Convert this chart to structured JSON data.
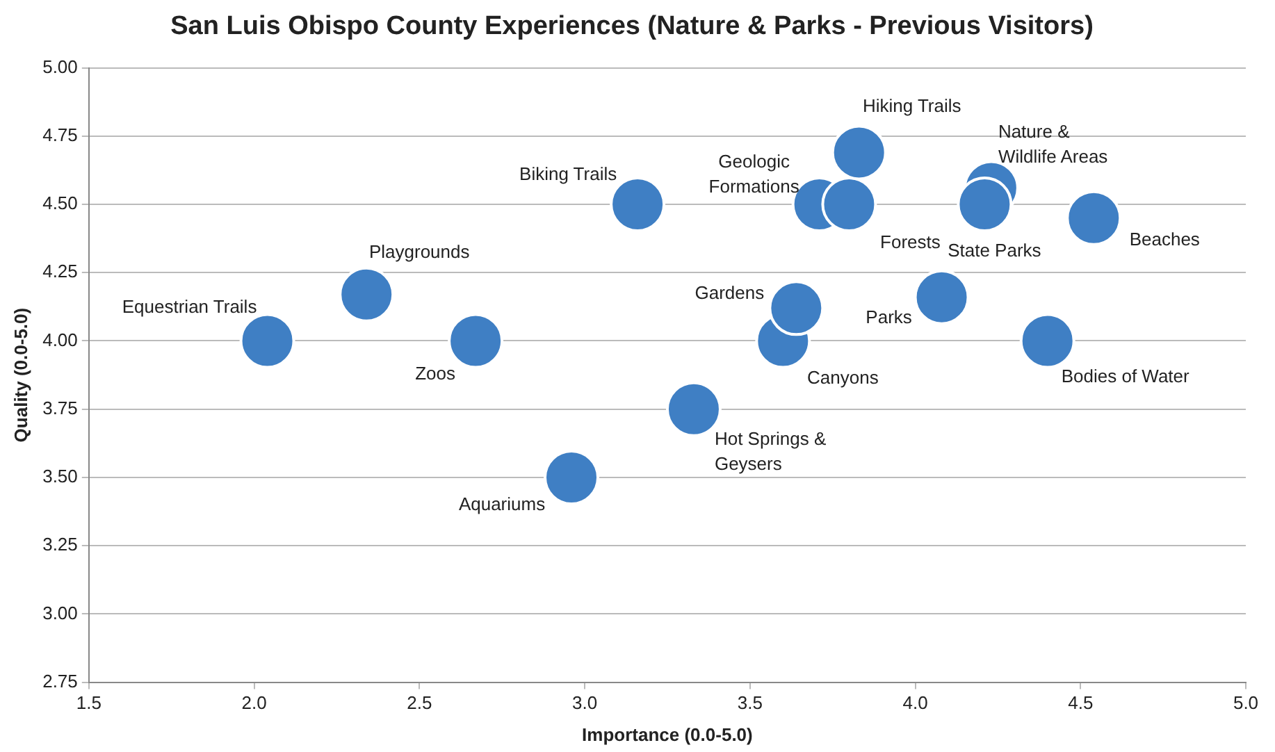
{
  "chart_data": {
    "type": "scatter",
    "title": "San Luis Obispo County Experiences (Nature & Parks - Previous Visitors)",
    "xlabel": "Importance (0.0-5.0)",
    "ylabel": "Quality (0.0-5.0)",
    "x": [
      2.04,
      2.34,
      2.67,
      2.96,
      3.16,
      3.33,
      3.6,
      3.64,
      3.71,
      3.8,
      3.83,
      4.08,
      4.23,
      4.21,
      4.54,
      4.4
    ],
    "series": [
      {
        "color": "#3f7fc4",
        "values": [
          4.0,
          4.17,
          4.0,
          3.5,
          4.5,
          3.75,
          4.0,
          4.12,
          4.5,
          4.5,
          4.69,
          4.16,
          4.56,
          4.5,
          4.45,
          4.0
        ]
      }
    ],
    "annotations": [
      {
        "text": "Equestrian Trails",
        "x": 2.04,
        "y": 4.0
      },
      {
        "text": "Playgrounds",
        "x": 2.34,
        "y": 4.17
      },
      {
        "text": "Zoos",
        "x": 2.67,
        "y": 4.0
      },
      {
        "text": "Aquariums",
        "x": 2.96,
        "y": 3.5
      },
      {
        "text": "Biking Trails",
        "x": 3.16,
        "y": 4.5
      },
      {
        "text": "Hot Springs &\nGeysers",
        "x": 3.33,
        "y": 3.75
      },
      {
        "text": "Canyons",
        "x": 3.6,
        "y": 4.0
      },
      {
        "text": "Gardens",
        "x": 3.64,
        "y": 4.12
      },
      {
        "text": "Geologic\nFormations",
        "x": 3.71,
        "y": 4.5
      },
      {
        "text": "Forests",
        "x": 3.8,
        "y": 4.5
      },
      {
        "text": "Hiking Trails",
        "x": 3.83,
        "y": 4.69
      },
      {
        "text": "Parks",
        "x": 4.08,
        "y": 4.16
      },
      {
        "text": "Nature &\nWildlife Areas",
        "x": 4.23,
        "y": 4.56
      },
      {
        "text": "State Parks",
        "x": 4.21,
        "y": 4.5
      },
      {
        "text": "Beaches",
        "x": 4.54,
        "y": 4.45
      },
      {
        "text": "Bodies of Water",
        "x": 4.4,
        "y": 4.0
      }
    ],
    "xlim": [
      1.5,
      5.0
    ],
    "xticks": [
      {
        "value": 1.5,
        "label": "1.5"
      },
      {
        "value": 2,
        "label": "2.0"
      },
      {
        "value": 2.5,
        "label": "2.5"
      },
      {
        "value": 3,
        "label": "3.0"
      },
      {
        "value": 3.5,
        "label": "3.5"
      },
      {
        "value": 4,
        "label": "4.0"
      },
      {
        "value": 4.5,
        "label": "4.5"
      },
      {
        "value": 5,
        "label": "5.0"
      }
    ],
    "ylim": [
      2.75,
      5.0
    ],
    "yticks": [
      {
        "value": 2.75,
        "label": "2.75"
      },
      {
        "value": 3,
        "label": "3.00"
      },
      {
        "value": 3.25,
        "label": "3.25"
      },
      {
        "value": 3.5,
        "label": "3.50"
      },
      {
        "value": 3.75,
        "label": "3.75"
      },
      {
        "value": 4,
        "label": "4.00"
      },
      {
        "value": 4.25,
        "label": "4.25"
      },
      {
        "value": 4.5,
        "label": "4.50"
      },
      {
        "value": 4.75,
        "label": "4.75"
      },
      {
        "value": 5,
        "label": "5.00"
      }
    ],
    "grid": "y",
    "legend": false,
    "marker": "circle"
  }
}
